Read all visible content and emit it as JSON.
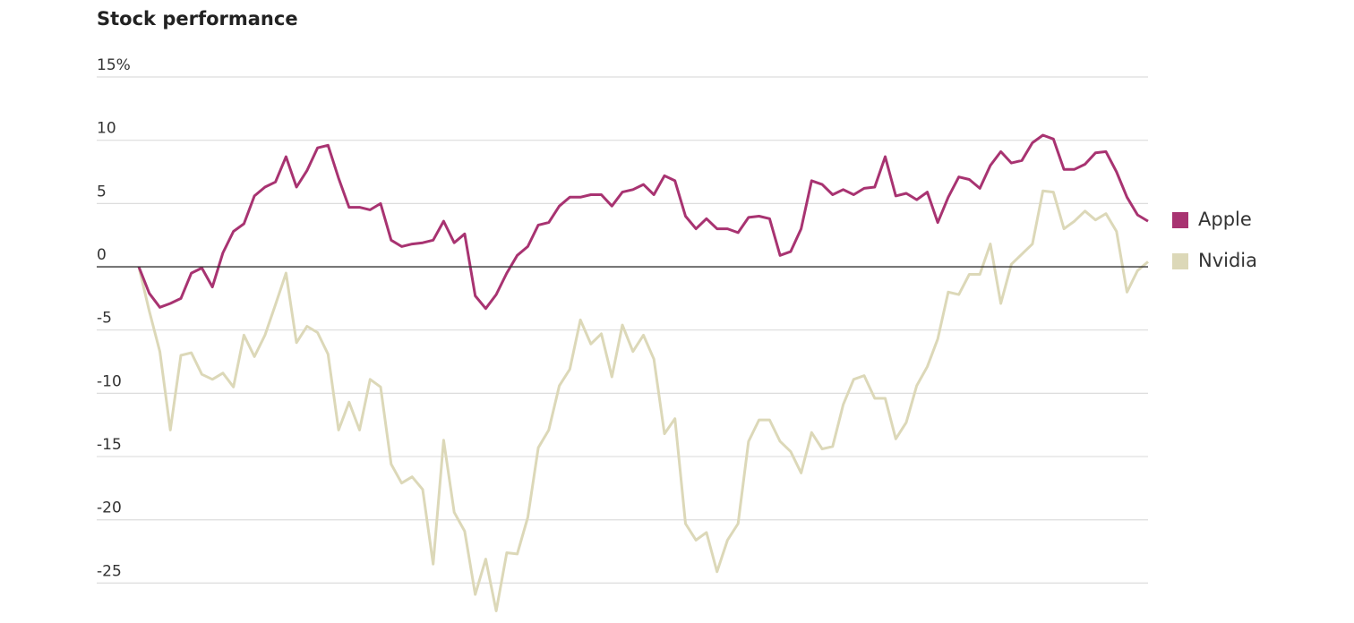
{
  "chart_data": {
    "type": "line",
    "title": "Stock performance",
    "ylim": [
      -27.5,
      15
    ],
    "yticks": [
      {
        "value": 15,
        "label": "15%"
      },
      10,
      5,
      0,
      -5,
      -10,
      -15,
      -20,
      -25
    ],
    "grid": true,
    "legend": "right",
    "series": [
      {
        "name": "Apple",
        "color": "#a83371",
        "values": [
          0,
          -2.1,
          -3.2,
          -2.9,
          -2.5,
          -0.5,
          -0.1,
          -1.6,
          1.1,
          2.8,
          3.4,
          5.6,
          6.3,
          6.7,
          8.7,
          6.3,
          7.6,
          9.4,
          9.6,
          7.0,
          4.7,
          4.7,
          4.5,
          5.0,
          2.1,
          1.6,
          1.8,
          1.9,
          2.1,
          3.6,
          1.9,
          2.6,
          -2.3,
          -3.3,
          -2.2,
          -0.5,
          0.9,
          1.6,
          3.3,
          3.5,
          4.8,
          5.5,
          5.5,
          5.7,
          5.7,
          4.8,
          5.9,
          6.1,
          6.5,
          5.7,
          7.2,
          6.8,
          4.0,
          3.0,
          3.8,
          3.0,
          3.0,
          2.7,
          3.9,
          4.0,
          3.8,
          0.9,
          1.2,
          3.0,
          6.8,
          6.5,
          5.7,
          6.1,
          5.7,
          6.2,
          6.3,
          8.7,
          5.6,
          5.8,
          5.3,
          5.9,
          3.5,
          5.5,
          7.1,
          6.9,
          6.2,
          8.0,
          9.1,
          8.2,
          8.4,
          9.8,
          10.4,
          10.1,
          7.7,
          7.7,
          8.1,
          9.0,
          9.1,
          7.5,
          5.5,
          4.1,
          3.6
        ]
      },
      {
        "name": "Nvidia",
        "color": "#dcd8b8",
        "values": [
          0,
          -3.5,
          -6.7,
          -12.9,
          -7.0,
          -6.8,
          -8.5,
          -8.9,
          -8.4,
          -9.5,
          -5.4,
          -7.1,
          -5.4,
          -3.0,
          -0.5,
          -6.0,
          -4.7,
          -5.2,
          -6.9,
          -12.9,
          -10.7,
          -12.9,
          -8.9,
          -9.5,
          -15.6,
          -17.1,
          -16.6,
          -17.6,
          -23.5,
          -13.7,
          -19.4,
          -20.9,
          -25.9,
          -23.1,
          -27.2,
          -22.6,
          -22.7,
          -19.8,
          -14.3,
          -12.9,
          -9.4,
          -8.1,
          -4.2,
          -6.1,
          -5.3,
          -8.7,
          -4.6,
          -6.7,
          -5.4,
          -7.3,
          -13.2,
          -12.0,
          -20.3,
          -21.6,
          -21.0,
          -24.1,
          -21.6,
          -20.3,
          -13.8,
          -12.1,
          -12.1,
          -13.8,
          -14.6,
          -16.3,
          -13.1,
          -14.4,
          -14.2,
          -10.9,
          -8.9,
          -8.6,
          -10.4,
          -10.4,
          -13.6,
          -12.3,
          -9.4,
          -7.9,
          -5.7,
          -2.0,
          -2.2,
          -0.6,
          -0.6,
          1.8,
          -2.9,
          0.2,
          1.0,
          1.8,
          6.0,
          5.9,
          3.0,
          3.6,
          4.4,
          3.7,
          4.2,
          2.8,
          -2.0,
          -0.3,
          0.4
        ]
      }
    ]
  }
}
